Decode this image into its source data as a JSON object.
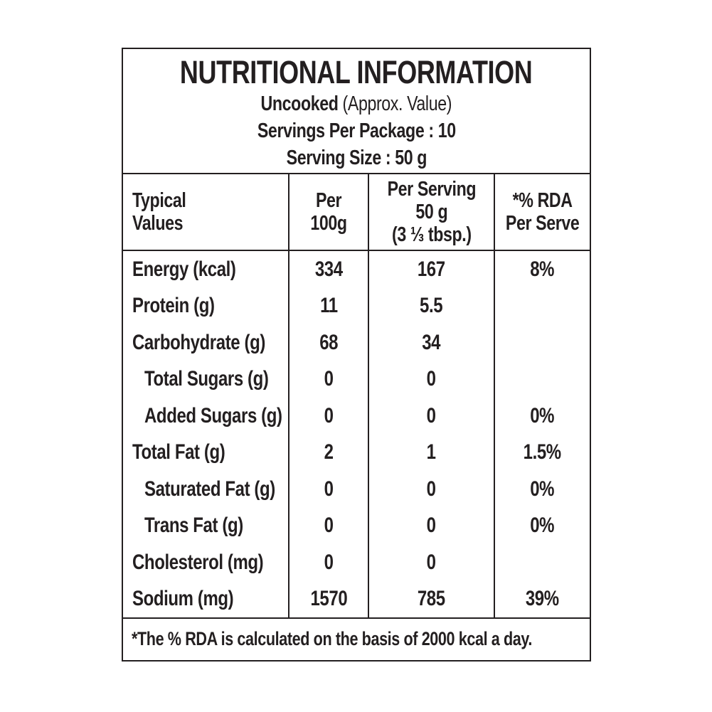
{
  "title": "NUTRITIONAL INFORMATION",
  "subtitle": {
    "bold": "Uncooked",
    "rest": " (Approx. Value)"
  },
  "servings_line": "Servings Per Package : 10",
  "serving_size_line": "Serving Size : 50 g",
  "columns": [
    {
      "name": "typical-values",
      "label_lines": [
        "Typical",
        "Values"
      ]
    },
    {
      "name": "per-100g",
      "label_lines": [
        "Per",
        "100g"
      ]
    },
    {
      "name": "per-serving",
      "label_lines": [
        "Per Serving",
        "50 g",
        "(3 ⅓ tbsp.)"
      ]
    },
    {
      "name": "rda-per-serve",
      "label_lines": [
        "*% RDA",
        "Per Serve"
      ]
    }
  ],
  "rows": [
    {
      "label": "Energy (kcal)",
      "indent": false,
      "per_100g": "334",
      "per_serving": "167",
      "rda": "8%"
    },
    {
      "label": "Protein (g)",
      "indent": false,
      "per_100g": "11",
      "per_serving": "5.5",
      "rda": ""
    },
    {
      "label": "Carbohydrate (g)",
      "indent": false,
      "per_100g": "68",
      "per_serving": "34",
      "rda": ""
    },
    {
      "label": "Total Sugars (g)",
      "indent": true,
      "per_100g": "0",
      "per_serving": "0",
      "rda": ""
    },
    {
      "label": "Added Sugars (g)",
      "indent": true,
      "per_100g": "0",
      "per_serving": "0",
      "rda": "0%"
    },
    {
      "label": "Total Fat (g)",
      "indent": false,
      "per_100g": "2",
      "per_serving": "1",
      "rda": "1.5%"
    },
    {
      "label": "Saturated Fat (g)",
      "indent": true,
      "per_100g": "0",
      "per_serving": "0",
      "rda": "0%"
    },
    {
      "label": "Trans Fat (g)",
      "indent": true,
      "per_100g": "0",
      "per_serving": "0",
      "rda": "0%"
    },
    {
      "label": "Cholesterol (mg)",
      "indent": false,
      "per_100g": "0",
      "per_serving": "0",
      "rda": ""
    },
    {
      "label": "Sodium (mg)",
      "indent": false,
      "per_100g": "1570",
      "per_serving": "785",
      "rda": "39%"
    }
  ],
  "footnote": "*The % RDA is calculated on the basis of 2000 kcal a day.",
  "colors": {
    "text": "#231f20",
    "border": "#231f20",
    "background": "#ffffff"
  }
}
